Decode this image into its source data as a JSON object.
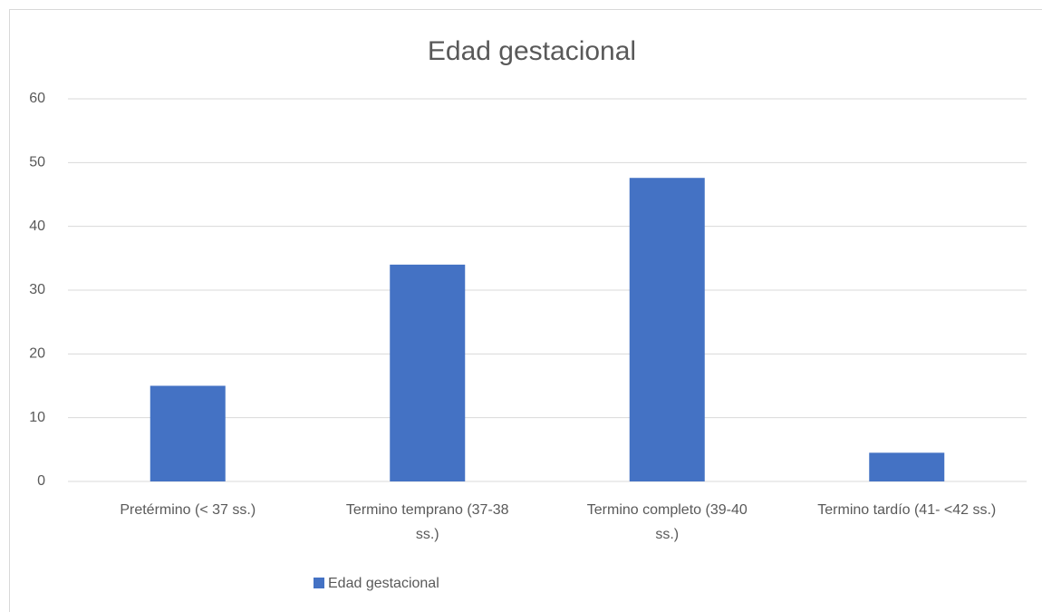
{
  "chart_data": {
    "type": "bar",
    "title": "Edad gestacional",
    "categories": [
      "Pretérmino (< 37 ss.)",
      "Termino temprano (37-38 ss.)",
      "Termino completo (39-40 ss.)",
      "Termino tardío (41- <42 ss.)"
    ],
    "series": [
      {
        "name": "Edad gestacional",
        "color": "#4472c4",
        "values": [
          15,
          34,
          47.6,
          4.5
        ]
      }
    ],
    "ylim": [
      0,
      60
    ],
    "yticks": [
      0,
      10,
      20,
      30,
      40,
      50,
      60
    ],
    "grid": true,
    "legend": "bottom"
  }
}
